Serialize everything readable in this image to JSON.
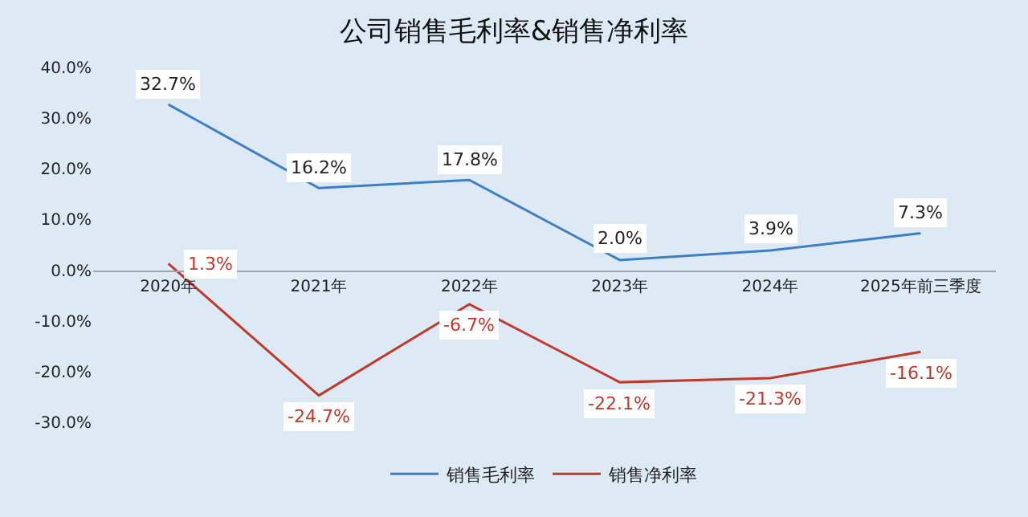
{
  "chart_data": {
    "type": "line",
    "title": "公司销售毛利率&销售净利率",
    "categories": [
      "2020年",
      "2021年",
      "2022年",
      "2023年",
      "2024年",
      "2025年前三季度"
    ],
    "series": [
      {
        "name": "销售毛利率",
        "color": "#3d7fc4",
        "values": [
          32.7,
          16.2,
          17.8,
          2.0,
          3.9,
          7.3
        ],
        "value_labels": [
          "32.7%",
          "16.2%",
          "17.8%",
          "2.0%",
          "3.9%",
          "7.3%"
        ]
      },
      {
        "name": "销售净利率",
        "color": "#c0392b",
        "values": [
          1.3,
          -24.7,
          -6.7,
          -22.1,
          -21.3,
          -16.1
        ],
        "value_labels": [
          "1.3%",
          "-24.7%",
          "-6.7%",
          "-22.1%",
          "-21.3%",
          "-16.1%"
        ]
      }
    ],
    "ylim": [
      -30,
      40
    ],
    "yticks": [
      {
        "value": -30,
        "label": "-30.0%"
      },
      {
        "value": -20,
        "label": "-20.0%"
      },
      {
        "value": -10,
        "label": "-10.0%"
      },
      {
        "value": 0,
        "label": "0.0%"
      },
      {
        "value": 10,
        "label": "10.0%"
      },
      {
        "value": 20,
        "label": "20.0%"
      },
      {
        "value": 30,
        "label": "30.0%"
      },
      {
        "value": 40,
        "label": "40.0%"
      }
    ],
    "grid": false,
    "legend": "bottom",
    "marker": "none",
    "line_style": "solid"
  }
}
